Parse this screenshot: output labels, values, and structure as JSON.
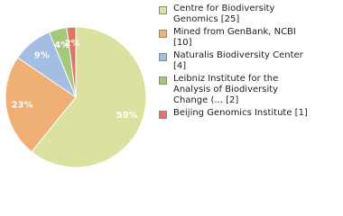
{
  "chart_data": {
    "type": "pie",
    "categories": [
      "Centre for Biodiversity Genomics [25]",
      "Mined from GenBank, NCBI [10]",
      "Naturalis Biodiversity Center [4]",
      "Leibniz Institute for the Analysis of Biodiversity Change (... [2]",
      "Beijing Genomics Institute [1]"
    ],
    "values": [
      59,
      23,
      9,
      4,
      2
    ],
    "value_labels": [
      "59%",
      "23%",
      "9%",
      "4%",
      "2%"
    ],
    "colors": [
      "#dbe29f",
      "#f0af75",
      "#a4bde2",
      "#a5c97c",
      "#e07466"
    ]
  }
}
